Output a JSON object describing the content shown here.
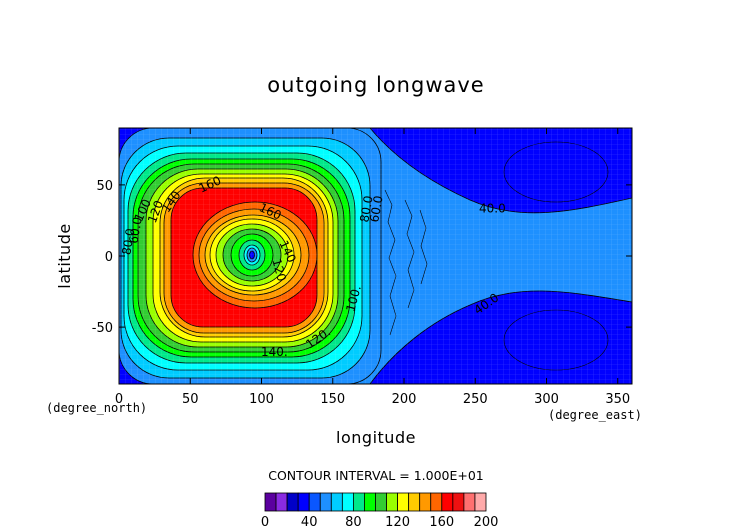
{
  "chart_data": {
    "type": "heatmap",
    "title": "outgoing longwave",
    "xlabel": "longitude",
    "ylabel": "latitude",
    "x_units": "(degree_east)",
    "y_units": "(degree_north)",
    "xlim": [
      0,
      360
    ],
    "ylim": [
      -90,
      90
    ],
    "x_ticks": [
      "0",
      "50",
      "100",
      "150",
      "200",
      "250",
      "300",
      "350"
    ],
    "x_tick_values": [
      0,
      50,
      100,
      150,
      200,
      250,
      300,
      350
    ],
    "y_ticks": [
      "-50",
      "0",
      "50"
    ],
    "y_tick_values": [
      -50,
      0,
      50
    ],
    "contour_interval_text": "CONTOUR INTERVAL = 1.000E+01",
    "contour_interval": 10,
    "colorbar": {
      "ticks": [
        "0",
        "40",
        "80",
        "120",
        "160",
        "200"
      ],
      "tick_values": [
        0,
        40,
        80,
        120,
        160,
        200
      ],
      "bins": [
        {
          "from": 0,
          "to": 10,
          "color": "#5b009f"
        },
        {
          "from": 10,
          "to": 20,
          "color": "#8a2be2"
        },
        {
          "from": 20,
          "to": 30,
          "color": "#0000c8"
        },
        {
          "from": 30,
          "to": 40,
          "color": "#0000ff"
        },
        {
          "from": 40,
          "to": 50,
          "color": "#0a57ff"
        },
        {
          "from": 50,
          "to": 60,
          "color": "#1e90ff"
        },
        {
          "from": 60,
          "to": 70,
          "color": "#00ccff"
        },
        {
          "from": 70,
          "to": 80,
          "color": "#00ffff"
        },
        {
          "from": 80,
          "to": 90,
          "color": "#00e88a"
        },
        {
          "from": 90,
          "to": 100,
          "color": "#00ff00"
        },
        {
          "from": 100,
          "to": 110,
          "color": "#32cd32"
        },
        {
          "from": 110,
          "to": 120,
          "color": "#99ff00"
        },
        {
          "from": 120,
          "to": 130,
          "color": "#ffff00"
        },
        {
          "from": 130,
          "to": 140,
          "color": "#ffcc00"
        },
        {
          "from": 140,
          "to": 150,
          "color": "#ff9900"
        },
        {
          "from": 150,
          "to": 160,
          "color": "#ff6600"
        },
        {
          "from": 160,
          "to": 170,
          "color": "#ff0000"
        },
        {
          "from": 170,
          "to": 180,
          "color": "#ee1111"
        },
        {
          "from": 180,
          "to": 190,
          "color": "#ff7070"
        },
        {
          "from": 190,
          "to": 200,
          "color": "#ffaaaa"
        }
      ]
    },
    "contour_labels": [
      {
        "text": "60.0",
        "lon": 12,
        "lat": 18,
        "rot": -80
      },
      {
        "text": "80.0",
        "lon": 7,
        "lat": 10,
        "rot": -80
      },
      {
        "text": "100",
        "lon": 17,
        "lat": 32,
        "rot": -65
      },
      {
        "text": "120",
        "lon": 26,
        "lat": 31,
        "rot": -70
      },
      {
        "text": "140",
        "lon": 37,
        "lat": 38,
        "rot": -55
      },
      {
        "text": "160",
        "lon": 64,
        "lat": 50,
        "rot": -25
      },
      {
        "text": "160",
        "lon": 106,
        "lat": 31,
        "rot": 25
      },
      {
        "text": "140",
        "lon": 118,
        "lat": 3,
        "rot": 65
      },
      {
        "text": "120",
        "lon": 112,
        "lat": -10,
        "rot": 75
      },
      {
        "text": "140.",
        "lon": 109,
        "lat": -68,
        "rot": 0
      },
      {
        "text": "120.",
        "lon": 140,
        "lat": -58,
        "rot": -35
      },
      {
        "text": "100.",
        "lon": 165,
        "lat": -30,
        "rot": -75
      },
      {
        "text": "80.0",
        "lon": 174,
        "lat": 33,
        "rot": -80
      },
      {
        "text": "60.0",
        "lon": 181,
        "lat": 33,
        "rot": -80
      },
      {
        "text": "40.0",
        "lon": 262,
        "lat": 33,
        "rot": 0
      },
      {
        "text": "40.0",
        "lon": 258,
        "lat": -34,
        "rot": -35
      }
    ]
  }
}
